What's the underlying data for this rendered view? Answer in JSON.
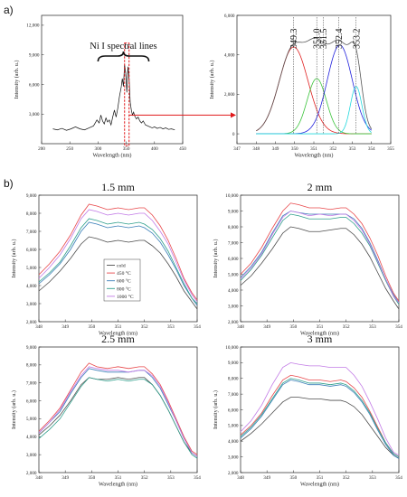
{
  "panel_labels": {
    "a": "a)",
    "b": "b)"
  },
  "annotation": "Ni I spectral lines",
  "colors": {
    "cold": "#4d4d4d",
    "c450": "#e8474a",
    "c600": "#3a7fb8",
    "c800": "#2f9f8c",
    "c1000": "#c27be6",
    "fit_red": "#e02020",
    "fit_green": "#3cc43c",
    "fit_blue": "#2222dd",
    "fit_cyan": "#22d8dd",
    "fit_envelope": "#555555",
    "highlight": "#e0191b"
  },
  "chart_data": [
    {
      "id": "overview",
      "type": "line",
      "xlabel": "Wavelength (nm)",
      "ylabel": "Intensity (arb. u.)",
      "xlim": [
        200,
        450
      ],
      "ylim": [
        0,
        13000
      ],
      "xticks": [
        200,
        250,
        300,
        350,
        400,
        450
      ],
      "yticks": [
        3000,
        6000,
        9000,
        12000
      ],
      "ytick_labels": [
        "3,000",
        "6,000",
        "9,000",
        "12,000"
      ],
      "highlight_range": [
        347,
        355
      ],
      "series": [
        {
          "x": [
            220,
            228,
            236,
            244,
            252,
            260,
            268,
            276,
            284,
            292,
            298,
            302,
            305,
            308,
            311,
            314,
            317,
            320,
            323,
            326,
            329,
            332,
            335,
            338,
            341,
            343,
            345,
            347,
            349,
            351,
            353,
            355,
            357,
            359,
            361,
            363,
            365,
            368,
            371,
            374,
            377,
            380,
            384,
            388,
            392,
            396,
            400,
            405,
            410,
            415,
            420,
            425,
            430,
            436
          ],
          "y": [
            1500,
            1400,
            1550,
            1350,
            1500,
            1700,
            1500,
            1400,
            1600,
            1800,
            2400,
            2100,
            2900,
            2300,
            2000,
            2600,
            2200,
            2400,
            1900,
            2700,
            3400,
            2700,
            3600,
            4800,
            5700,
            6600,
            5800,
            8000,
            7200,
            5200,
            7800,
            6600,
            4200,
            3400,
            2900,
            3200,
            2800,
            2500,
            2700,
            2300,
            2100,
            2300,
            1900,
            1800,
            1700,
            1600,
            1700,
            1550,
            1650,
            1500,
            1600,
            1450,
            1500,
            1400
          ]
        }
      ]
    },
    {
      "id": "fit",
      "type": "line",
      "xlabel": "Wavelength (nm)",
      "ylabel": "Intensity (arb. u.)",
      "xlim": [
        347,
        355
      ],
      "ylim": [
        -500,
        6000
      ],
      "xticks": [
        347,
        348,
        349,
        350,
        351,
        352,
        353,
        354,
        355
      ],
      "yticks": [
        0,
        2000,
        4000,
        6000
      ],
      "ytick_labels": [
        "0",
        "2,000",
        "4,000",
        "6,000"
      ],
      "peaks": [
        "349.3",
        "351.0",
        "351.5",
        "352.4",
        "353.2"
      ],
      "peak_positions": [
        349.95,
        351.15,
        351.5,
        352.3,
        353.2
      ],
      "components": [
        {
          "center": 349.95,
          "amplitude": 4400,
          "sigma": 0.75,
          "color_key": "fit_red"
        },
        {
          "center": 351.15,
          "amplitude": 2800,
          "sigma": 0.5,
          "color_key": "fit_green"
        },
        {
          "center": 352.35,
          "amplitude": 4500,
          "sigma": 0.65,
          "color_key": "fit_blue"
        },
        {
          "center": 353.2,
          "amplitude": 2400,
          "sigma": 0.3,
          "color_key": "fit_cyan"
        }
      ]
    },
    {
      "id": "p15",
      "type": "line",
      "title": "1.5 mm",
      "xlabel": "Wavelength (nm)",
      "ylabel": "Intensity (arb. u.)",
      "xlim": [
        348,
        354
      ],
      "ylim": [
        2000,
        9000
      ],
      "xticks": [
        348,
        349,
        350,
        351,
        352,
        353,
        354
      ],
      "yticks": [
        2000,
        3000,
        4000,
        5000,
        6000,
        7000,
        8000,
        9000
      ],
      "ytick_labels": [
        "2,000",
        "3,000",
        "4,000",
        "5,000",
        "6,000",
        "7,000",
        "8,000",
        "9,000"
      ],
      "legend": [
        "cold",
        "450 °C",
        "600 °C",
        "800 °C",
        "1000 °C"
      ],
      "x": [
        348,
        348.4,
        348.8,
        349.2,
        349.6,
        349.9,
        350.2,
        350.6,
        351,
        351.4,
        351.8,
        352,
        352.3,
        352.6,
        352.9,
        353.2,
        353.5,
        353.8,
        354
      ],
      "series": [
        {
          "name": "cold",
          "color_key": "cold",
          "values": [
            3700,
            4200,
            4800,
            5500,
            6300,
            6700,
            6600,
            6400,
            6500,
            6400,
            6500,
            6500,
            6200,
            5800,
            5200,
            4500,
            3700,
            3100,
            2700
          ]
        },
        {
          "name": "450 °C",
          "color_key": "c450",
          "values": [
            4600,
            5200,
            5900,
            6800,
            7900,
            8500,
            8400,
            8200,
            8300,
            8200,
            8300,
            8300,
            7900,
            7300,
            6500,
            5500,
            4400,
            3600,
            3200
          ]
        },
        {
          "name": "600 °C",
          "color_key": "c600",
          "values": [
            4100,
            4600,
            5200,
            6000,
            7000,
            7500,
            7400,
            7200,
            7300,
            7200,
            7300,
            7200,
            6900,
            6400,
            5700,
            4900,
            4000,
            3300,
            2900
          ]
        },
        {
          "name": "800 °C",
          "color_key": "c800",
          "values": [
            4200,
            4700,
            5300,
            6200,
            7200,
            7700,
            7600,
            7400,
            7500,
            7400,
            7500,
            7400,
            7100,
            6600,
            5900,
            5000,
            4100,
            3300,
            3000
          ]
        },
        {
          "name": "1000 °C",
          "color_key": "c1000",
          "values": [
            4400,
            5000,
            5700,
            6600,
            7700,
            8200,
            8100,
            7900,
            8000,
            7900,
            8000,
            8000,
            7600,
            7000,
            6300,
            5300,
            4300,
            3500,
            3100
          ]
        }
      ]
    },
    {
      "id": "p2",
      "type": "line",
      "title": "2 mm",
      "xlabel": "Wavelength (nm)",
      "ylabel": "Intensity (arb. u.)",
      "xlim": [
        348,
        354
      ],
      "ylim": [
        2000,
        10000
      ],
      "xticks": [
        348,
        349,
        350,
        351,
        352,
        353,
        354
      ],
      "yticks": [
        2000,
        3000,
        4000,
        5000,
        6000,
        7000,
        8000,
        9000,
        10000
      ],
      "ytick_labels": [
        "2,000",
        "3,000",
        "4,000",
        "5,000",
        "6,000",
        "7,000",
        "8,000",
        "9,000",
        "10,000"
      ],
      "x": [
        348,
        348.4,
        348.8,
        349.2,
        349.6,
        349.9,
        350.2,
        350.6,
        351,
        351.4,
        351.8,
        352,
        352.3,
        352.6,
        352.9,
        353.2,
        353.5,
        353.8,
        354
      ],
      "series": [
        {
          "name": "cold",
          "color_key": "cold",
          "values": [
            4300,
            4900,
            5700,
            6600,
            7600,
            8000,
            7900,
            7700,
            7700,
            7800,
            7900,
            7900,
            7500,
            6900,
            6100,
            5100,
            4100,
            3300,
            2800
          ]
        },
        {
          "name": "450 °C",
          "color_key": "c450",
          "values": [
            5000,
            5700,
            6700,
            7900,
            9000,
            9500,
            9400,
            9200,
            9200,
            9100,
            9200,
            9200,
            8800,
            8200,
            7300,
            6200,
            4900,
            3800,
            3300
          ]
        },
        {
          "name": "600 °C",
          "color_key": "c600",
          "values": [
            4800,
            5500,
            6400,
            7600,
            8700,
            9000,
            8900,
            8800,
            8800,
            8800,
            8800,
            8800,
            8500,
            7900,
            7000,
            5900,
            4700,
            3700,
            3200
          ]
        },
        {
          "name": "800 °C",
          "color_key": "c800",
          "values": [
            4600,
            5300,
            6200,
            7300,
            8400,
            8800,
            8700,
            8500,
            8500,
            8500,
            8600,
            8600,
            8200,
            7600,
            6800,
            5700,
            4600,
            3600,
            3100
          ]
        },
        {
          "name": "1000 °C",
          "color_key": "c1000",
          "values": [
            4700,
            5400,
            6300,
            7500,
            8600,
            9000,
            8900,
            8700,
            8800,
            8700,
            8800,
            8800,
            8400,
            7800,
            6900,
            5800,
            4700,
            3600,
            3200
          ]
        }
      ]
    },
    {
      "id": "p25",
      "type": "line",
      "title": "2.5 mm",
      "xlabel": "Wavelength (nm)",
      "ylabel": "Intensity (arb. u.)",
      "xlim": [
        348,
        354
      ],
      "ylim": [
        2000,
        9000
      ],
      "xticks": [
        348,
        349,
        350,
        351,
        352,
        353,
        354
      ],
      "yticks": [
        2000,
        3000,
        4000,
        5000,
        6000,
        7000,
        8000,
        9000
      ],
      "ytick_labels": [
        "2,000",
        "3,000",
        "4,000",
        "5,000",
        "6,000",
        "7,000",
        "8,000",
        "9,000"
      ],
      "x": [
        348,
        348.4,
        348.8,
        349.2,
        349.6,
        349.9,
        350.2,
        350.6,
        351,
        351.4,
        351.8,
        352,
        352.3,
        352.6,
        352.9,
        353.2,
        353.5,
        353.8,
        354
      ],
      "series": [
        {
          "name": "cold",
          "color_key": "cold",
          "values": [
            4100,
            4600,
            5200,
            6000,
            6900,
            7300,
            7200,
            7200,
            7300,
            7200,
            7300,
            7300,
            6900,
            6300,
            5500,
            4600,
            3700,
            3100,
            2900
          ]
        },
        {
          "name": "450 °C",
          "color_key": "c450",
          "values": [
            4300,
            4900,
            5600,
            6600,
            7600,
            8100,
            7900,
            7800,
            7900,
            7800,
            7900,
            7900,
            7500,
            6900,
            6000,
            5000,
            4000,
            3200,
            3000
          ]
        },
        {
          "name": "600 °C",
          "color_key": "c600",
          "values": [
            4200,
            4800,
            5400,
            6400,
            7300,
            7800,
            7700,
            7600,
            7600,
            7600,
            7700,
            7700,
            7300,
            6700,
            5800,
            4900,
            3900,
            3100,
            2900
          ]
        },
        {
          "name": "800 °C",
          "color_key": "c800",
          "values": [
            3900,
            4400,
            5000,
            5900,
            6800,
            7300,
            7200,
            7100,
            7200,
            7100,
            7200,
            7200,
            6900,
            6300,
            5500,
            4600,
            3700,
            3000,
            2800
          ]
        },
        {
          "name": "1000 °C",
          "color_key": "c1000",
          "values": [
            4200,
            4800,
            5500,
            6500,
            7400,
            7900,
            7800,
            7700,
            7700,
            7600,
            7700,
            7700,
            7400,
            6800,
            5900,
            4900,
            3900,
            3100,
            2900
          ]
        }
      ]
    },
    {
      "id": "p3",
      "type": "line",
      "title": "3 mm",
      "xlabel": "Wavelength (nm)",
      "ylabel": "Intensity (arb. u.)",
      "xlim": [
        348,
        354
      ],
      "ylim": [
        2000,
        10000
      ],
      "xticks": [
        348,
        349,
        350,
        351,
        352,
        353,
        354
      ],
      "yticks": [
        2000,
        3000,
        4000,
        5000,
        6000,
        7000,
        8000,
        9000,
        10000
      ],
      "ytick_labels": [
        "2,000",
        "3,000",
        "4,000",
        "5,000",
        "6,000",
        "7,000",
        "8,000",
        "9,000",
        "10,000"
      ],
      "x": [
        348,
        348.4,
        348.8,
        349.2,
        349.6,
        349.9,
        350.2,
        350.6,
        351,
        351.4,
        351.8,
        352,
        352.3,
        352.6,
        352.9,
        353.2,
        353.5,
        353.8,
        354
      ],
      "series": [
        {
          "name": "cold",
          "color_key": "cold",
          "values": [
            4000,
            4500,
            5100,
            5800,
            6500,
            6800,
            6800,
            6700,
            6700,
            6600,
            6600,
            6500,
            6200,
            5700,
            5000,
            4300,
            3600,
            3100,
            2900
          ]
        },
        {
          "name": "450 °C",
          "color_key": "c450",
          "values": [
            4400,
            5000,
            5800,
            6900,
            7900,
            8200,
            8100,
            7900,
            7900,
            7800,
            7900,
            7800,
            7400,
            6800,
            5900,
            4900,
            3900,
            3200,
            3000
          ]
        },
        {
          "name": "600 °C",
          "color_key": "c600",
          "values": [
            4200,
            4800,
            5600,
            6600,
            7600,
            7900,
            7800,
            7600,
            7600,
            7500,
            7600,
            7500,
            7100,
            6500,
            5700,
            4700,
            3800,
            3100,
            2900
          ]
        },
        {
          "name": "800 °C",
          "color_key": "c800",
          "values": [
            4300,
            4900,
            5700,
            6700,
            7700,
            8000,
            7900,
            7700,
            7700,
            7600,
            7700,
            7600,
            7200,
            6600,
            5800,
            4800,
            3900,
            3200,
            3000
          ]
        },
        {
          "name": "1000 °C",
          "color_key": "c1000",
          "values": [
            4600,
            5300,
            6300,
            7600,
            8700,
            9000,
            8900,
            8800,
            8800,
            8700,
            8700,
            8700,
            8200,
            7500,
            6500,
            5400,
            4200,
            3300,
            3100
          ]
        }
      ]
    }
  ]
}
